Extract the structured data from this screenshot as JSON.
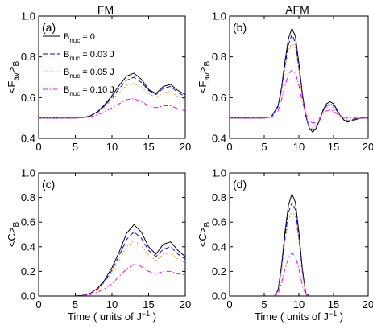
{
  "header": {
    "left": "FM",
    "right": "AFM"
  },
  "legend": {
    "entries": [
      {
        "base": "B",
        "sub": "nuc",
        "rest": " = 0"
      },
      {
        "base": "B",
        "sub": "nuc",
        "rest": " = 0.03 J"
      },
      {
        "base": "B",
        "sub": "nuc",
        "rest": " = 0.05 J"
      },
      {
        "base": "B",
        "sub": "nuc",
        "rest": " = 0.10 J"
      }
    ],
    "placement": "top-left of panel (a)"
  },
  "styles": [
    {
      "color": "#000000",
      "dash": "solid"
    },
    {
      "color": "#0000ff",
      "dash": "dashed"
    },
    {
      "color": "#ff7f00",
      "dash": "dotted"
    },
    {
      "color": "#ff00ff",
      "dash": "dash-dot"
    }
  ],
  "chart_data": [
    {
      "type": "line",
      "panel_label": "(a)",
      "column": "FM",
      "ylabel": {
        "open": "<F",
        "sub": "av",
        "close": ">",
        "sub2": "B"
      },
      "xlabel": "",
      "xlim": [
        0,
        20
      ],
      "ylim": [
        0.4,
        1.0
      ],
      "xticks": [
        "0",
        "5",
        "10",
        "15",
        "20"
      ],
      "yticks": [
        "0.4",
        "0.6",
        "0.8",
        "1.0"
      ],
      "series": [
        {
          "x": [
            0,
            5,
            6,
            7,
            8,
            9,
            10,
            11,
            12,
            13,
            14,
            15,
            16,
            17,
            18,
            19,
            20
          ],
          "values": [
            0.5,
            0.5,
            0.502,
            0.51,
            0.53,
            0.565,
            0.61,
            0.66,
            0.705,
            0.72,
            0.69,
            0.64,
            0.62,
            0.655,
            0.665,
            0.635,
            0.615
          ]
        },
        {
          "x": [
            0,
            5,
            6,
            7,
            8,
            9,
            10,
            11,
            12,
            13,
            14,
            15,
            16,
            17,
            18,
            19,
            20
          ],
          "values": [
            0.5,
            0.5,
            0.502,
            0.509,
            0.527,
            0.56,
            0.6,
            0.645,
            0.685,
            0.7,
            0.675,
            0.635,
            0.615,
            0.645,
            0.655,
            0.625,
            0.605
          ]
        },
        {
          "x": [
            0,
            5,
            6,
            7,
            8,
            9,
            10,
            11,
            12,
            13,
            14,
            15,
            16,
            17,
            18,
            19,
            20
          ],
          "values": [
            0.5,
            0.5,
            0.501,
            0.508,
            0.524,
            0.552,
            0.59,
            0.625,
            0.66,
            0.67,
            0.65,
            0.62,
            0.6,
            0.625,
            0.63,
            0.605,
            0.59
          ]
        },
        {
          "x": [
            0,
            5,
            6,
            7,
            8,
            9,
            10,
            11,
            12,
            13,
            14,
            15,
            16,
            17,
            18,
            19,
            20
          ],
          "values": [
            0.5,
            0.5,
            0.501,
            0.505,
            0.515,
            0.53,
            0.55,
            0.57,
            0.59,
            0.595,
            0.58,
            0.56,
            0.55,
            0.56,
            0.56,
            0.545,
            0.535
          ]
        }
      ]
    },
    {
      "type": "line",
      "panel_label": "(b)",
      "column": "AFM",
      "ylabel": {
        "open": "<F",
        "sub": "av",
        "close": ">",
        "sub2": "B"
      },
      "xlabel": "",
      "xlim": [
        0,
        20
      ],
      "ylim": [
        0.4,
        1.0
      ],
      "xticks": [
        "0",
        "5",
        "10",
        "15",
        "20"
      ],
      "yticks": [
        "0.4",
        "0.6",
        "0.8",
        "1.0"
      ],
      "series": [
        {
          "x": [
            0,
            5,
            6,
            7,
            7.5,
            8,
            8.5,
            9,
            9.5,
            10,
            10.5,
            11,
            11.5,
            12,
            12.5,
            13,
            13.5,
            14,
            14.5,
            15,
            15.5,
            16,
            16.5,
            17,
            18,
            19,
            20
          ],
          "values": [
            0.5,
            0.5,
            0.505,
            0.56,
            0.65,
            0.78,
            0.89,
            0.94,
            0.9,
            0.77,
            0.62,
            0.51,
            0.45,
            0.43,
            0.45,
            0.49,
            0.54,
            0.57,
            0.58,
            0.57,
            0.54,
            0.51,
            0.49,
            0.48,
            0.49,
            0.5,
            0.5
          ]
        },
        {
          "x": [
            0,
            5,
            6,
            7,
            7.5,
            8,
            8.5,
            9,
            9.5,
            10,
            10.5,
            11,
            11.5,
            12,
            12.5,
            13,
            13.5,
            14,
            14.5,
            15,
            15.5,
            16,
            16.5,
            17,
            18,
            19,
            20
          ],
          "values": [
            0.5,
            0.5,
            0.505,
            0.555,
            0.64,
            0.76,
            0.86,
            0.91,
            0.87,
            0.75,
            0.61,
            0.51,
            0.455,
            0.44,
            0.455,
            0.49,
            0.535,
            0.56,
            0.57,
            0.56,
            0.535,
            0.51,
            0.495,
            0.485,
            0.495,
            0.5,
            0.5
          ]
        },
        {
          "x": [
            0,
            5,
            6,
            7,
            7.5,
            8,
            8.5,
            9,
            9.5,
            10,
            10.5,
            11,
            11.5,
            12,
            12.5,
            13,
            13.5,
            14,
            14.5,
            15,
            15.5,
            16,
            16.5,
            17,
            18,
            19,
            20
          ],
          "values": [
            0.5,
            0.5,
            0.504,
            0.55,
            0.63,
            0.74,
            0.83,
            0.87,
            0.84,
            0.73,
            0.6,
            0.51,
            0.46,
            0.45,
            0.465,
            0.495,
            0.53,
            0.55,
            0.56,
            0.55,
            0.53,
            0.51,
            0.5,
            0.49,
            0.497,
            0.5,
            0.5
          ]
        },
        {
          "x": [
            0,
            5,
            6,
            7,
            7.5,
            8,
            8.5,
            9,
            9.5,
            10,
            10.5,
            11,
            11.5,
            12,
            12.5,
            13,
            13.5,
            14,
            14.5,
            15,
            15.5,
            16,
            16.5,
            17,
            18,
            19,
            20
          ],
          "values": [
            0.5,
            0.5,
            0.503,
            0.535,
            0.59,
            0.66,
            0.715,
            0.735,
            0.72,
            0.66,
            0.58,
            0.52,
            0.485,
            0.475,
            0.48,
            0.5,
            0.52,
            0.535,
            0.54,
            0.535,
            0.52,
            0.51,
            0.505,
            0.5,
            0.5,
            0.5,
            0.5
          ]
        }
      ]
    },
    {
      "type": "line",
      "panel_label": "(c)",
      "column": "FM",
      "ylabel": {
        "open": "<C>",
        "sub": "B"
      },
      "xlabel": {
        "main": "Time ( units of J",
        "sup": "−1",
        "tail": " )"
      },
      "xlim": [
        0,
        20
      ],
      "ylim": [
        0.0,
        1.0
      ],
      "xticks": [
        "0",
        "5",
        "10",
        "15",
        "20"
      ],
      "yticks": [
        "0.0",
        "0.2",
        "0.4",
        "0.6",
        "0.8",
        "1.0"
      ],
      "series": [
        {
          "x": [
            0,
            5,
            6,
            7,
            8,
            9,
            10,
            11,
            12,
            13,
            14,
            15,
            16,
            17,
            18,
            19,
            20
          ],
          "values": [
            0,
            0,
            0.005,
            0.02,
            0.06,
            0.13,
            0.23,
            0.36,
            0.51,
            0.58,
            0.52,
            0.4,
            0.34,
            0.42,
            0.44,
            0.37,
            0.32
          ]
        },
        {
          "x": [
            0,
            5,
            6,
            7,
            8,
            9,
            10,
            11,
            12,
            13,
            14,
            15,
            16,
            17,
            18,
            19,
            20
          ],
          "values": [
            0,
            0,
            0.005,
            0.02,
            0.055,
            0.12,
            0.21,
            0.33,
            0.46,
            0.52,
            0.47,
            0.37,
            0.32,
            0.38,
            0.4,
            0.34,
            0.3
          ]
        },
        {
          "x": [
            0,
            5,
            6,
            7,
            8,
            9,
            10,
            11,
            12,
            13,
            14,
            15,
            16,
            17,
            18,
            19,
            20
          ],
          "values": [
            0,
            0,
            0.004,
            0.017,
            0.05,
            0.11,
            0.19,
            0.29,
            0.4,
            0.45,
            0.41,
            0.33,
            0.29,
            0.34,
            0.35,
            0.3,
            0.27
          ]
        },
        {
          "x": [
            0,
            5,
            6,
            7,
            8,
            9,
            10,
            11,
            12,
            13,
            14,
            15,
            16,
            17,
            18,
            19,
            20
          ],
          "values": [
            0,
            0,
            0.003,
            0.01,
            0.03,
            0.06,
            0.1,
            0.16,
            0.22,
            0.26,
            0.24,
            0.2,
            0.18,
            0.2,
            0.2,
            0.18,
            0.17
          ]
        }
      ]
    },
    {
      "type": "line",
      "panel_label": "(d)",
      "column": "AFM",
      "ylabel": {
        "open": "<C>",
        "sub": "B"
      },
      "xlabel": {
        "main": "Time ( units of J",
        "sup": "−1",
        "tail": " )"
      },
      "xlim": [
        0,
        20
      ],
      "ylim": [
        0.0,
        1.0
      ],
      "xticks": [
        "0",
        "5",
        "10",
        "15",
        "20"
      ],
      "yticks": [
        "0.0",
        "0.2",
        "0.4",
        "0.6",
        "0.8",
        "1.0"
      ],
      "series": [
        {
          "x": [
            0,
            6,
            6.5,
            7,
            7.5,
            8,
            8.5,
            9,
            9.5,
            10,
            10.5,
            11,
            11.5,
            12,
            20
          ],
          "values": [
            0,
            0,
            0,
            0.05,
            0.25,
            0.52,
            0.74,
            0.83,
            0.76,
            0.52,
            0.22,
            0.02,
            0,
            0,
            0
          ]
        },
        {
          "x": [
            0,
            6,
            6.5,
            7,
            7.5,
            8,
            8.5,
            9,
            9.5,
            10,
            10.5,
            11,
            11.5,
            12,
            20
          ],
          "values": [
            0,
            0,
            0,
            0.045,
            0.23,
            0.48,
            0.68,
            0.76,
            0.7,
            0.48,
            0.2,
            0.02,
            0,
            0,
            0
          ]
        },
        {
          "x": [
            0,
            6,
            6.5,
            7,
            7.5,
            8,
            8.5,
            9,
            9.5,
            10,
            10.5,
            11,
            11.5,
            12,
            20
          ],
          "values": [
            0,
            0,
            0,
            0.04,
            0.21,
            0.44,
            0.62,
            0.69,
            0.64,
            0.44,
            0.18,
            0.015,
            0,
            0,
            0
          ]
        },
        {
          "x": [
            0,
            6,
            6.5,
            7,
            7.5,
            8,
            8.5,
            9,
            9.5,
            10,
            10.5,
            11,
            11.5,
            12,
            20
          ],
          "values": [
            0,
            0,
            0,
            0.02,
            0.11,
            0.22,
            0.31,
            0.35,
            0.32,
            0.22,
            0.09,
            0.01,
            0,
            0,
            0
          ]
        }
      ]
    }
  ]
}
